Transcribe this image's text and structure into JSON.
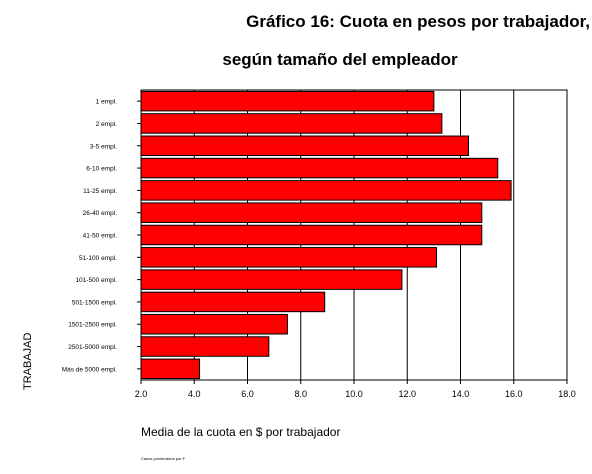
{
  "chart_data": {
    "type": "bar",
    "orientation": "horizontal",
    "title": "Gráfico 16: Cuota en pesos por trabajador,",
    "subtitle": "según tamaño del empleador",
    "xlabel": "Media de la cuota en $ por trabajador",
    "ylabel": "TRABAJAD",
    "categories": [
      "1 empl.",
      "2 empl.",
      "3-5 empl.",
      "6-10 empl.",
      "11-25 empl.",
      "26-40 empl.",
      "41-50 empl.",
      "51-100 empl.",
      "101-500 empl.",
      "501-1500 empl.",
      "1501-2500 empl.",
      "2501-5000 empl.",
      "Más de 5000 empl."
    ],
    "values": [
      13.0,
      13.3,
      14.3,
      15.4,
      15.9,
      14.8,
      14.8,
      13.1,
      11.8,
      8.9,
      7.5,
      6.8,
      4.2
    ],
    "xlim": [
      2.0,
      18.0
    ],
    "xticks": [
      "2.0",
      "4.0",
      "6.0",
      "8.0",
      "10.0",
      "12.0",
      "14.0",
      "16.0",
      "18.0"
    ],
    "grid": true,
    "bar_color": "#ff0000",
    "footnote": "Casos ponderados por F"
  }
}
